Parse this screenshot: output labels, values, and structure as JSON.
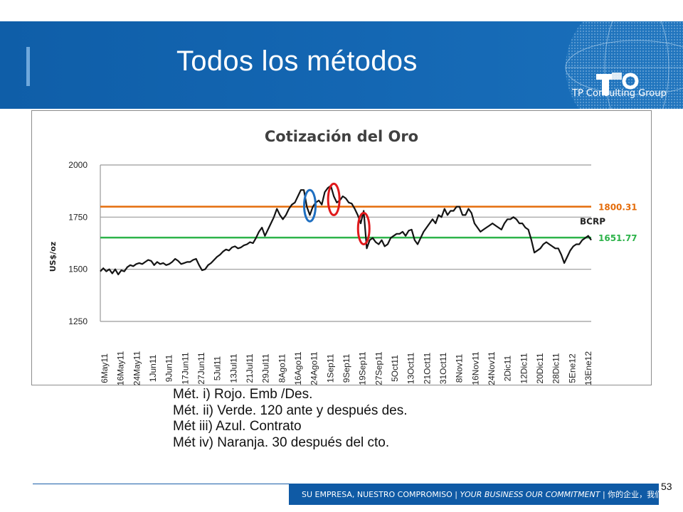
{
  "slide": {
    "title": "Todos los métodos",
    "company": "TP Consulting Group",
    "page_number": "53",
    "footer": {
      "part1": "SU EMPRESA, NUESTRO COMPROMISO",
      "sep1": " | ",
      "part2": "YOUR BUSINESS OUR COMMITMENT",
      "sep2": " | ",
      "part3": "你的企业，我们的承诺"
    },
    "notes": [
      "Mét. i) Rojo. Emb /Des.",
      "Mét. ii) Verde. 120 ante y después des.",
      "Mét iii) Azul. Contrato",
      "Mét iv) Naranja. 30 después del cto."
    ],
    "colors": {
      "header_blue": "#1467b3",
      "orange": "#e46c0a",
      "green": "#2db34a",
      "red": "#e0191b",
      "blue": "#1f6fc1"
    }
  },
  "chart_data": {
    "type": "line",
    "title": "Cotización del Oro",
    "ylabel": "US$/oz",
    "xlabel": "",
    "ylim": [
      1250,
      2000
    ],
    "yticks": [
      1250,
      1500,
      1750,
      2000
    ],
    "grid": true,
    "x_tick_labels": [
      "6May11",
      "16May11",
      "24May11",
      "1Jun11",
      "9Jun11",
      "17Jun11",
      "27Jun11",
      "5Jul11",
      "13Jul11",
      "21Jul11",
      "29Jul11",
      "8Ago11",
      "16Ago11",
      "24Ago11",
      "1Sep11",
      "9Sep11",
      "19Sep11",
      "27Sep11",
      "5Oct11",
      "13Oct11",
      "21Oct11",
      "31Oct11",
      "8Nov11",
      "16Nov11",
      "24Nov11",
      "2Dic11",
      "12Dic11",
      "20Dic11",
      "28Dic11",
      "5Ene12",
      "13Ene12"
    ],
    "series": [
      {
        "name": "BCRP",
        "values": [
          1490,
          1505,
          1490,
          1500,
          1480,
          1500,
          1475,
          1495,
          1490,
          1510,
          1520,
          1515,
          1525,
          1530,
          1525,
          1535,
          1545,
          1540,
          1520,
          1535,
          1525,
          1530,
          1520,
          1525,
          1535,
          1550,
          1540,
          1525,
          1530,
          1535,
          1535,
          1545,
          1550,
          1520,
          1495,
          1500,
          1520,
          1530,
          1545,
          1560,
          1570,
          1585,
          1595,
          1590,
          1605,
          1610,
          1600,
          1605,
          1615,
          1620,
          1630,
          1625,
          1650,
          1680,
          1700,
          1660,
          1690,
          1720,
          1750,
          1790,
          1760,
          1740,
          1760,
          1790,
          1810,
          1820,
          1850,
          1880,
          1880,
          1800,
          1760,
          1800,
          1820,
          1830,
          1810,
          1870,
          1890,
          1900,
          1850,
          1820,
          1830,
          1850,
          1840,
          1820,
          1815,
          1790,
          1760,
          1720,
          1780,
          1600,
          1640,
          1650,
          1630,
          1620,
          1640,
          1610,
          1620,
          1650,
          1660,
          1670,
          1670,
          1680,
          1660,
          1685,
          1690,
          1640,
          1620,
          1650,
          1680,
          1700,
          1720,
          1740,
          1720,
          1760,
          1750,
          1790,
          1760,
          1780,
          1780,
          1800,
          1800,
          1760,
          1760,
          1790,
          1770,
          1720,
          1700,
          1680,
          1690,
          1700,
          1710,
          1720,
          1710,
          1700,
          1690,
          1720,
          1740,
          1740,
          1750,
          1740,
          1720,
          1720,
          1700,
          1690,
          1640,
          1580,
          1590,
          1600,
          1620,
          1630,
          1620,
          1610,
          1600,
          1600,
          1570,
          1530,
          1560,
          1590,
          1610,
          1620,
          1620,
          1640,
          1650,
          1660,
          1640
        ]
      }
    ],
    "reference_lines": [
      {
        "label": "1800.31",
        "value": 1800.31,
        "color": "#e46c0a"
      },
      {
        "label": "1651.77",
        "value": 1651.77,
        "color": "#2db34a"
      }
    ],
    "annotations": [
      {
        "type": "ellipse",
        "color": "#1f6fc1",
        "x_index": 70,
        "value_range": [
          1730,
          1880
        ]
      },
      {
        "type": "ellipse",
        "color": "#e0191b",
        "x_index": 78,
        "value_range": [
          1760,
          1910
        ]
      },
      {
        "type": "ellipse",
        "color": "#e0191b",
        "x_index": 88,
        "value_range": [
          1620,
          1770
        ]
      }
    ]
  }
}
